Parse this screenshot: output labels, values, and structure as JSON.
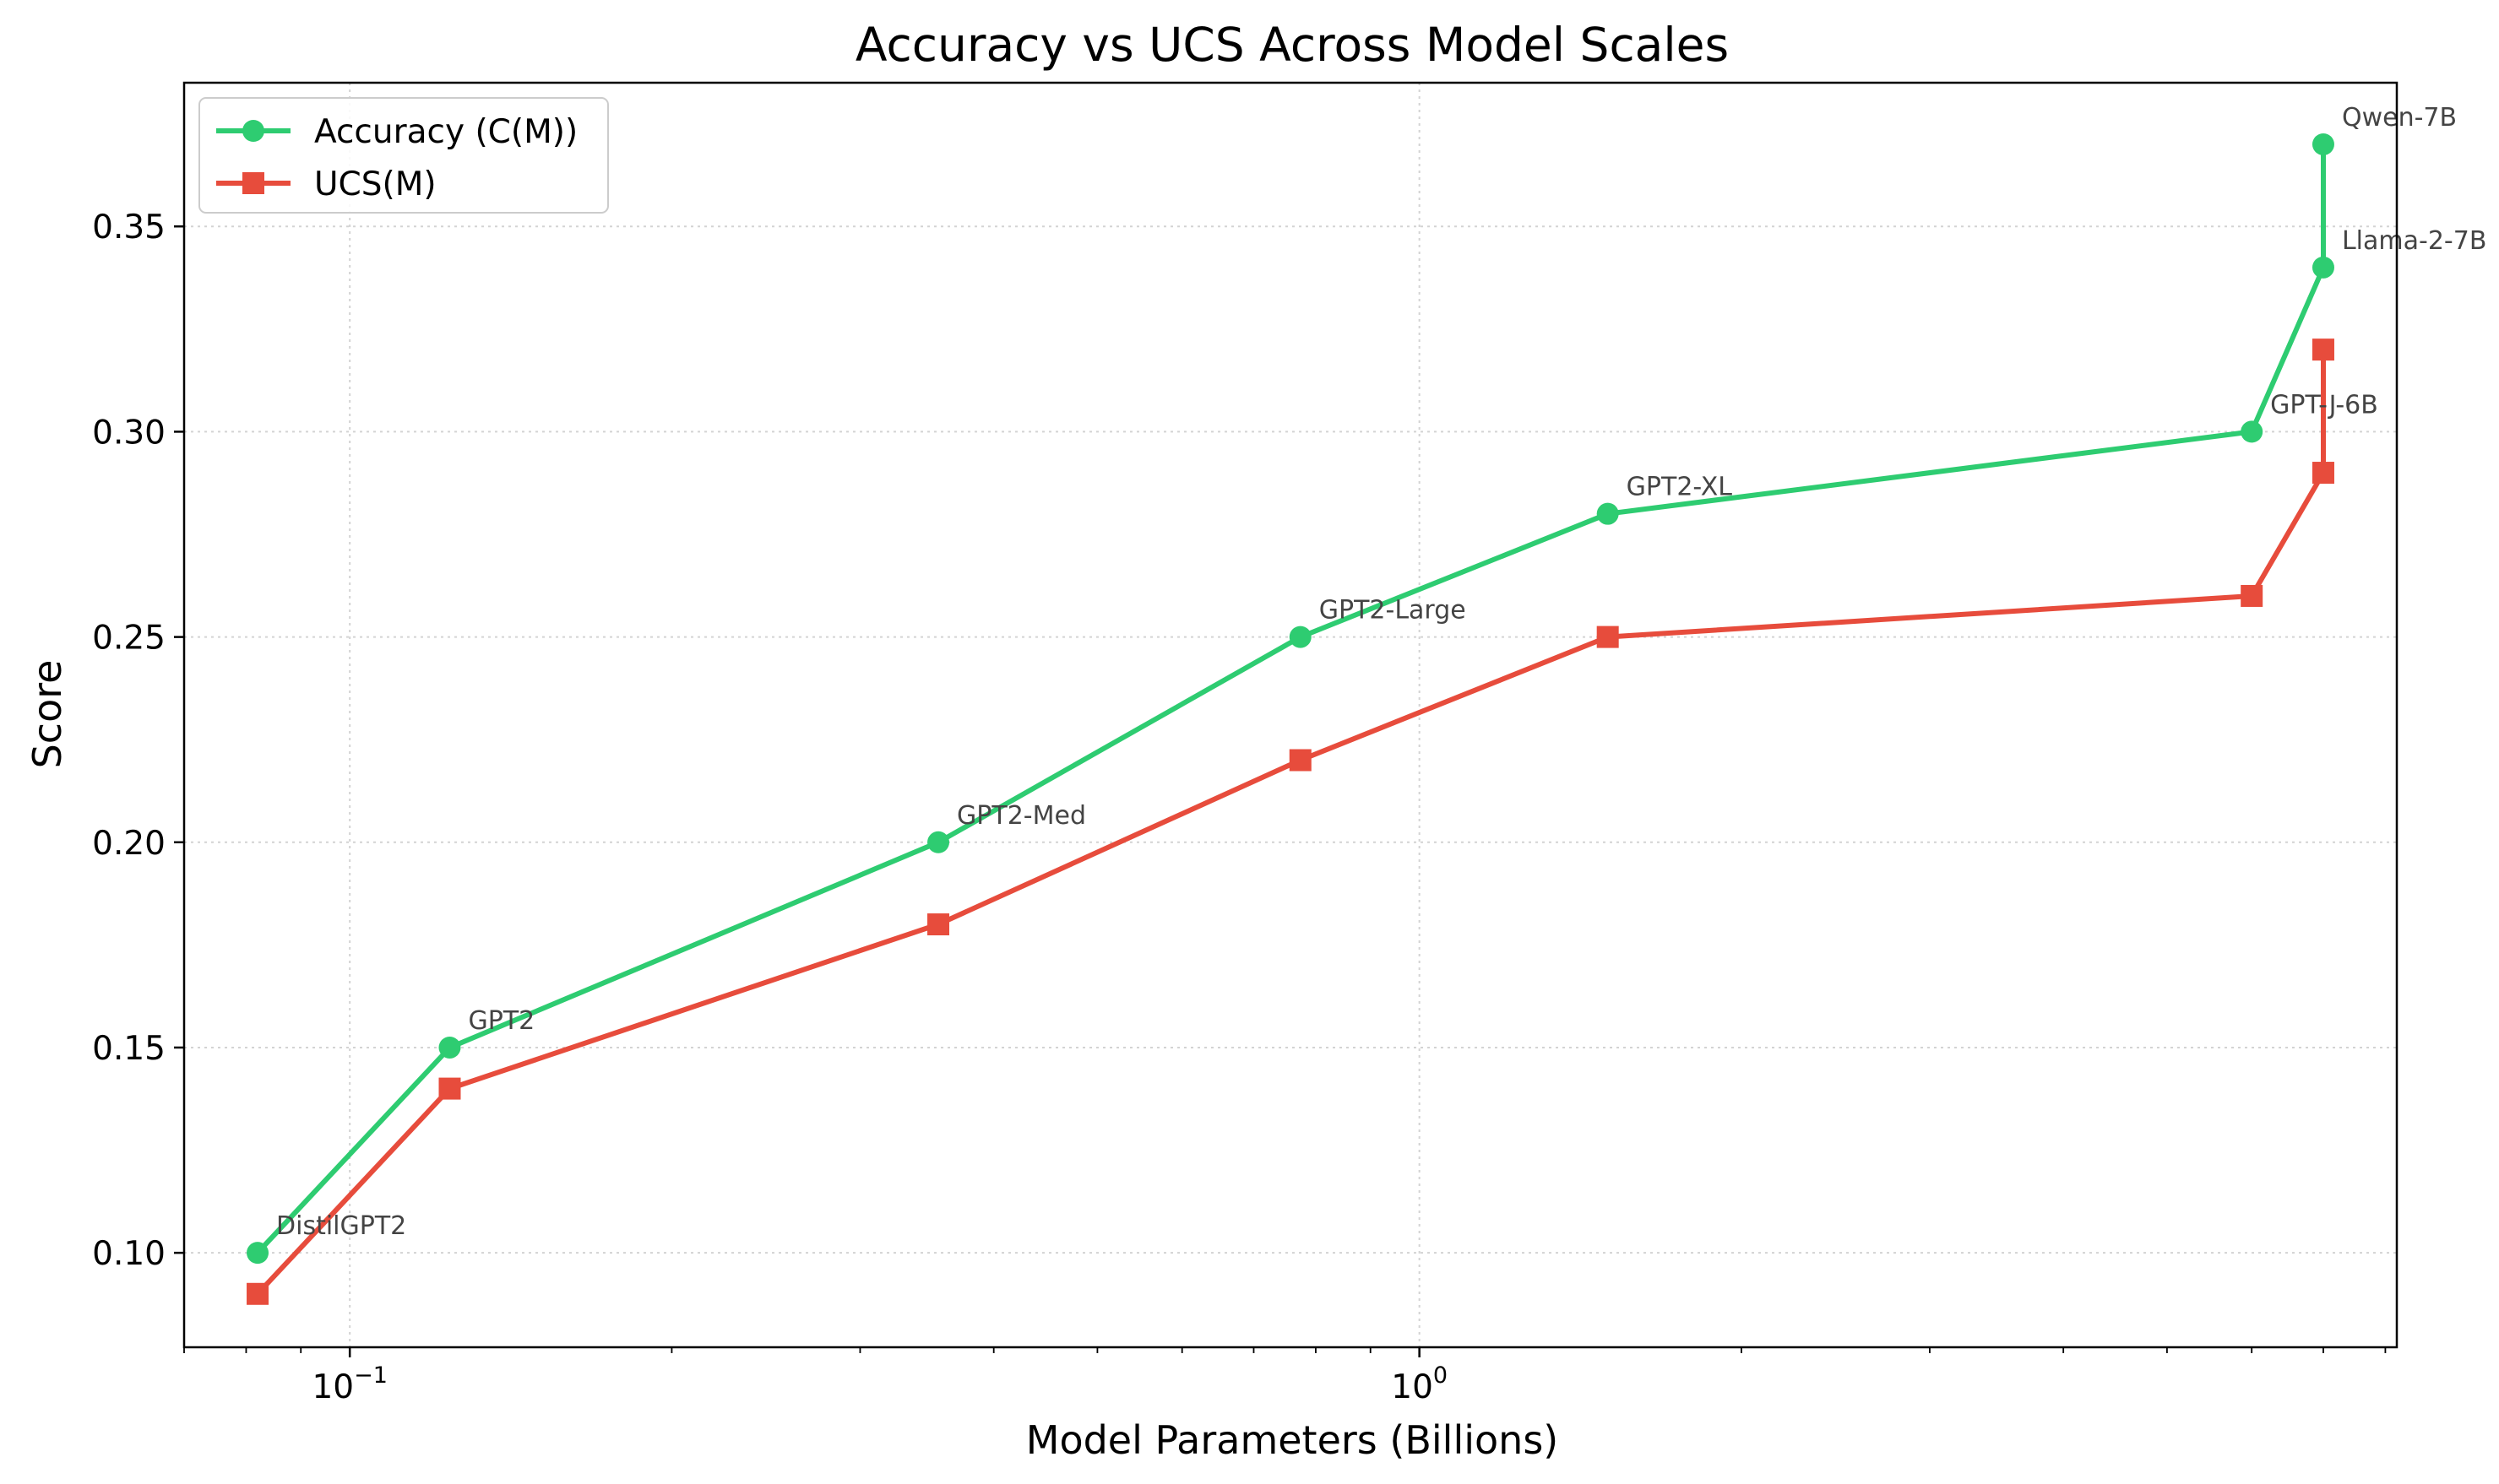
{
  "chart_data": {
    "type": "line",
    "title": "Accuracy vs UCS Across Model Scales",
    "xlabel": "Model Parameters (Billions)",
    "ylabel": "Score",
    "xscale": "log",
    "xlim": [
      0.07,
      8.2
    ],
    "ylim": [
      0.077,
      0.385
    ],
    "grid": true,
    "legend_position": "top-left",
    "x_tick_labels": [
      {
        "value": 0.1,
        "base": "10",
        "exp": "−1"
      },
      {
        "value": 1,
        "base": "10",
        "exp": "0"
      }
    ],
    "y_ticks": [
      0.1,
      0.15,
      0.2,
      0.25,
      0.3,
      0.35
    ],
    "y_tick_labels": [
      "0.10",
      "0.15",
      "0.20",
      "0.25",
      "0.30",
      "0.35"
    ],
    "models": [
      "DistilGPT2",
      "GPT2",
      "GPT2-Med",
      "GPT2-Large",
      "GPT2-XL",
      "GPT-J-6B",
      "Llama-2-7B",
      "Qwen-7B"
    ],
    "x": [
      0.082,
      0.124,
      0.355,
      0.774,
      1.5,
      6,
      7,
      7
    ],
    "series": [
      {
        "name": "Accuracy (C(M))",
        "color": "#2ecc71",
        "marker": "circle",
        "values": [
          0.1,
          0.15,
          0.2,
          0.25,
          0.28,
          0.3,
          0.34,
          0.37
        ]
      },
      {
        "name": "UCS(M)",
        "color": "#e74c3c",
        "marker": "square",
        "values": [
          0.09,
          0.14,
          0.18,
          0.22,
          0.25,
          0.26,
          0.29,
          0.32
        ]
      }
    ]
  }
}
